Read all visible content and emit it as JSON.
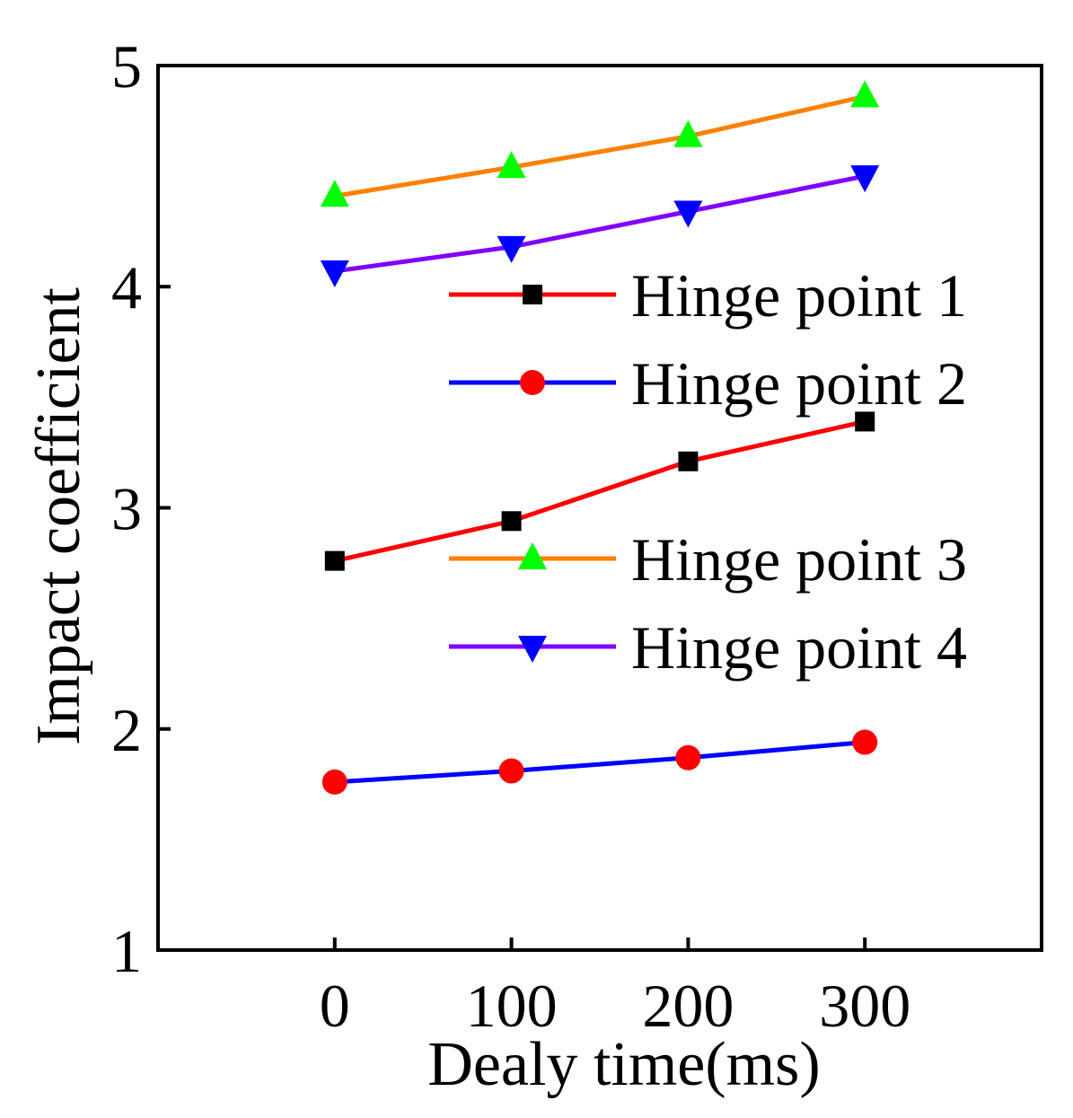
{
  "chart_data": {
    "type": "line",
    "xlabel": "Dealy time(ms)",
    "ylabel": "Impact coefficient",
    "x": [
      0,
      100,
      200,
      300
    ],
    "xticks": [
      "0",
      "100",
      "200",
      "300"
    ],
    "xlim": [
      -100,
      400
    ],
    "yticks": [
      "1",
      "2",
      "3",
      "4",
      "5"
    ],
    "ylim": [
      1,
      5
    ],
    "grid": false,
    "legend_position": "right",
    "series": [
      {
        "name": "Hinge point 1",
        "values": [
          2.76,
          2.94,
          3.21,
          3.39
        ],
        "line_color": "#ff0000",
        "marker": "square",
        "marker_color": "#000000"
      },
      {
        "name": "Hinge point 2",
        "values": [
          1.76,
          1.81,
          1.87,
          1.94
        ],
        "line_color": "#0000ff",
        "marker": "circle",
        "marker_color": "#ff0000"
      },
      {
        "name": "Hinge point 3",
        "values": [
          4.41,
          4.54,
          4.68,
          4.86
        ],
        "line_color": "#ff8000",
        "marker": "triangle-up",
        "marker_color": "#00ff00"
      },
      {
        "name": "Hinge point 4",
        "values": [
          4.07,
          4.18,
          4.34,
          4.5
        ],
        "line_color": "#8000ff",
        "marker": "triangle-down",
        "marker_color": "#0000ff"
      }
    ]
  }
}
